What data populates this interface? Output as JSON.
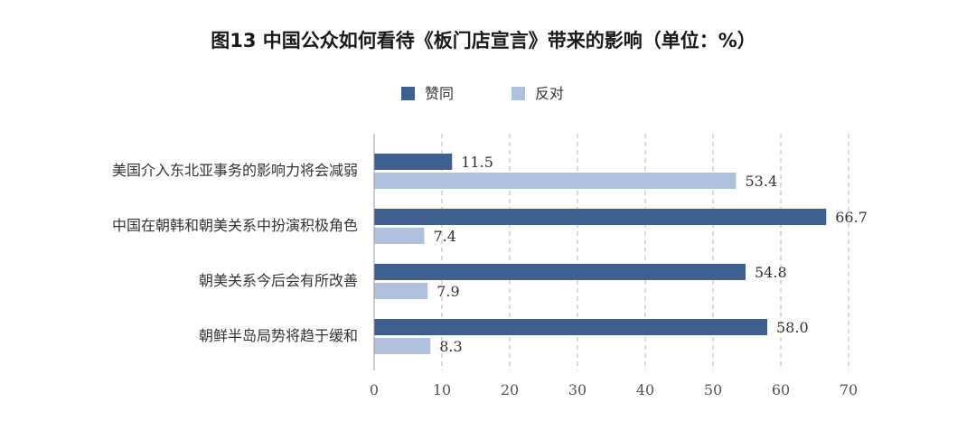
{
  "chart_data": {
    "type": "bar",
    "orientation": "horizontal",
    "title": "图13  中国公众如何看待《板门店宣言》带来的影响（单位：%）",
    "categories": [
      "美国介入东北亚事务的影响力将会减弱",
      "中国在朝韩和朝美关系中扮演积极角色",
      "朝美关系今后会有所改善",
      "朝鲜半岛局势将趋于缓和"
    ],
    "series": [
      {
        "name": "赞同",
        "color": "#3f5f8f",
        "values": [
          11.5,
          66.7,
          54.8,
          58.0
        ],
        "labels": [
          "11.5",
          "66.7",
          "54.8",
          "58.0"
        ]
      },
      {
        "name": "反对",
        "color": "#afc1dc",
        "values": [
          53.4,
          7.4,
          7.9,
          8.3
        ],
        "labels": [
          "53.4",
          "7.4",
          "7.9",
          "8.3"
        ]
      }
    ],
    "xlim": [
      0,
      70
    ],
    "xticks": [
      "0",
      "10",
      "20",
      "30",
      "40",
      "50",
      "60",
      "70"
    ],
    "grid": "vertical-dashed",
    "legend": "top-center"
  }
}
